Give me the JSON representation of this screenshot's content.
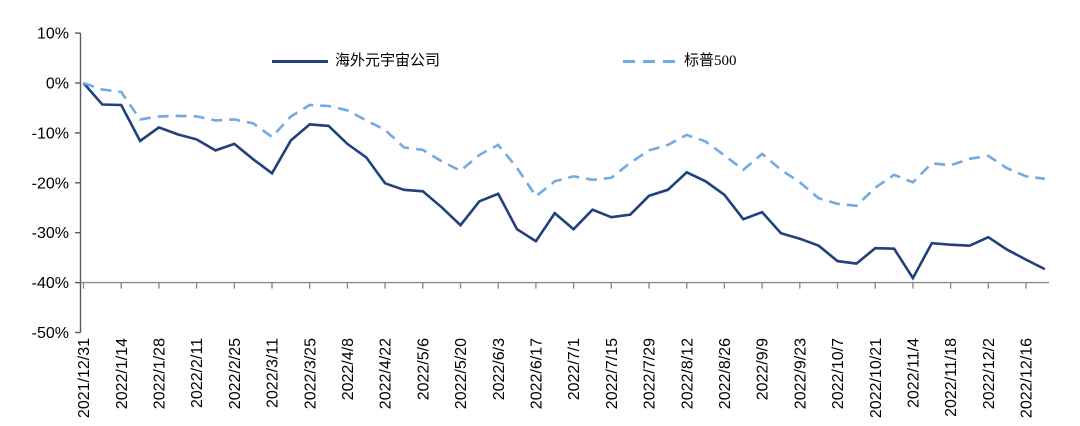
{
  "chart_data": {
    "type": "line",
    "title": "",
    "xlabel": "",
    "ylabel": "",
    "y_unit": "%",
    "ylim": [
      -50,
      10
    ],
    "y_tick_step": 10,
    "grid": false,
    "legend_position": "top-inside",
    "y_tick_labels": [
      "10%",
      "0%",
      "-10%",
      "-20%",
      "-30%",
      "-40%",
      "-50%"
    ],
    "y_tick_values": [
      10,
      0,
      -10,
      -20,
      -30,
      -40,
      -50
    ],
    "x_tick_labels": [
      "2021/12/31",
      "2022/1/14",
      "2022/1/28",
      "2022/2/11",
      "2022/2/25",
      "2022/3/11",
      "2022/3/25",
      "2022/4/8",
      "2022/4/22",
      "2022/5/6",
      "2022/5/20",
      "2022/6/3",
      "2022/6/17",
      "2022/7/1",
      "2022/7/15",
      "2022/7/29",
      "2022/8/12",
      "2022/8/26",
      "2022/9/9",
      "2022/9/23",
      "2022/10/7",
      "2022/10/21",
      "2022/11/4",
      "2022/11/18",
      "2022/12/2",
      "2022/12/16"
    ],
    "points_per_label": 2,
    "series": [
      {
        "name": "海外元宇宙公司",
        "color": "#21407C",
        "line_style": "solid",
        "values": [
          0,
          -4.3,
          -4.4,
          -11.6,
          -8.9,
          -10.3,
          -11.3,
          -13.5,
          -12.2,
          -15.3,
          -18.1,
          -11.5,
          -8.3,
          -8.6,
          -12.2,
          -14.9,
          -20.1,
          -21.4,
          -21.7,
          -24.9,
          -28.5,
          -23.7,
          -22.2,
          -29.3,
          -31.7,
          -26.1,
          -29.3,
          -25.4,
          -26.9,
          -26.4,
          -22.6,
          -21.4,
          -17.9,
          -19.7,
          -22.4,
          -27.3,
          -25.9,
          -30.1,
          -31.2,
          -32.6,
          -35.7,
          -36.2,
          -33.1,
          -33.2,
          -39.1,
          -32.1,
          -32.4,
          -32.6,
          -30.9,
          -33.4,
          -35.4,
          -37.3
        ]
      },
      {
        "name": "标普500",
        "color": "#72ABE3",
        "line_style": "dashed",
        "values": [
          0,
          -1.3,
          -1.8,
          -7.3,
          -6.7,
          -6.6,
          -6.7,
          -7.5,
          -7.3,
          -8.1,
          -10.8,
          -6.7,
          -4.4,
          -4.6,
          -5.5,
          -7.5,
          -9.4,
          -12.9,
          -13.4,
          -15.7,
          -17.6,
          -14.4,
          -12.4,
          -17.0,
          -22.7,
          -19.7,
          -18.7,
          -19.4,
          -19.0,
          -16.0,
          -13.5,
          -12.4,
          -10.4,
          -11.7,
          -14.5,
          -17.4,
          -14.2,
          -17.4,
          -19.9,
          -23.1,
          -24.2,
          -24.6,
          -21.0,
          -18.4,
          -19.9,
          -16.1,
          -16.5,
          -15.2,
          -14.6,
          -17.1,
          -18.7,
          -19.2
        ]
      }
    ]
  },
  "colors": {
    "axis_y": "#595959",
    "axis_x": "#8C8C8C",
    "text": "#000000",
    "background": "#FFFFFF",
    "series_metaverse": "#21407C",
    "series_sp500": "#72ABE3"
  }
}
